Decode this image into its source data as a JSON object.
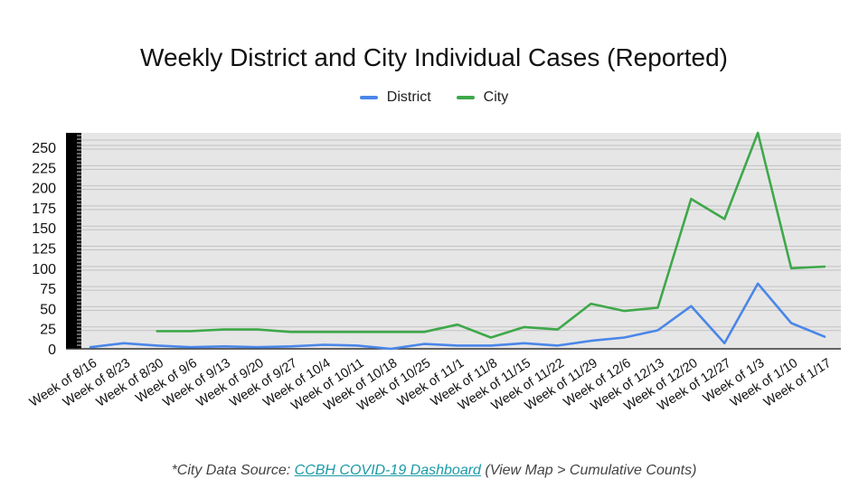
{
  "chart_data": {
    "type": "line",
    "title": "Weekly District and City Individual Cases (Reported)",
    "xlabel": "",
    "ylabel": "",
    "categories": [
      "Week of 8/16",
      "Week of 8/23",
      "Week of 8/30",
      "Week of 9/6",
      "Week of 9/13",
      "Week of 9/20",
      "Week of 9/27",
      "Week of 10/4",
      "Week of 10/11",
      "Week of 10/18",
      "Week of 10/25",
      "Week of 11/1",
      "Week of 11/8",
      "Week of 11/15",
      "Week of 11/22",
      "Week of 11/29",
      "Week of 12/6",
      "Week of 12/13",
      "Week of 12/20",
      "Week of 12/27",
      "Week of 1/3",
      "Week of 1/10",
      "Week of 1/17"
    ],
    "series": [
      {
        "name": "District",
        "color": "#4a86e8",
        "values": [
          2,
          7,
          4,
          2,
          3,
          2,
          3,
          5,
          4,
          0,
          6,
          4,
          4,
          7,
          4,
          10,
          14,
          23,
          53,
          7,
          81,
          32,
          15
        ]
      },
      {
        "name": "City",
        "color": "#3ea84a",
        "values": [
          null,
          null,
          22,
          22,
          24,
          24,
          21,
          21,
          21,
          21,
          21,
          30,
          14,
          27,
          24,
          56,
          47,
          51,
          186,
          161,
          268,
          100,
          102
        ]
      }
    ],
    "ylim": [
      0,
      268
    ],
    "yticks": [
      0,
      25,
      50,
      75,
      100,
      125,
      150,
      175,
      200,
      225,
      250
    ],
    "grid": true,
    "legend": "top-center"
  },
  "footer": {
    "prefix": "*City Data Source: ",
    "link_text": "CCBH COVID-19 Dashboard",
    "suffix": " (View Map > Cumulative Counts)"
  }
}
